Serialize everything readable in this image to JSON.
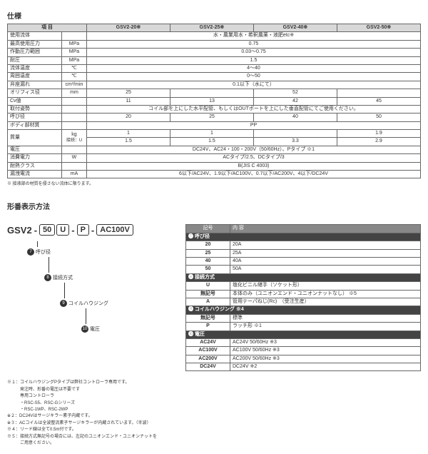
{
  "spec": {
    "title": "仕様",
    "headers": [
      "項 目",
      "",
      "GSV2-20※",
      "GSV2-25※",
      "GSV2-40※",
      "GSV2-50※"
    ],
    "rows": [
      {
        "label": "使用流体",
        "unit": "",
        "vals": [
          "水・農業用水・希釈農薬・液肥etc※"
        ],
        "span": 4
      },
      {
        "label": "最高使用圧力",
        "unit": "MPa",
        "vals": [
          "0.75"
        ],
        "span": 4
      },
      {
        "label": "作動圧力範囲",
        "unit": "MPa",
        "vals": [
          "0.03～0.75"
        ],
        "span": 4
      },
      {
        "label": "耐圧",
        "unit": "MPa",
        "vals": [
          "1.5"
        ],
        "span": 4
      },
      {
        "label": "流体温度",
        "unit": "℃",
        "vals": [
          "4～40"
        ],
        "span": 4
      },
      {
        "label": "周囲温度",
        "unit": "℃",
        "vals": [
          "0～50"
        ],
        "span": 4
      },
      {
        "label": "弁座漏れ",
        "unit": "cm³/min",
        "vals": [
          "0.1以下（水にて）"
        ],
        "span": 4
      },
      {
        "label": "オリフィス径",
        "unit": "mm",
        "vals": [
          "25",
          "",
          "52",
          ""
        ],
        "span": 0
      },
      {
        "label": "Cv値",
        "unit": "",
        "vals": [
          "11",
          "13",
          "42",
          "45"
        ],
        "span": 0
      },
      {
        "label": "取付姿勢",
        "unit": "",
        "vals": [
          "コイル部を上にした水平配管、もしくはOUTポートを上にした垂直配管にてご使用ください。"
        ],
        "span": 4
      },
      {
        "label": "呼び径",
        "unit": "",
        "vals": [
          "20",
          "25",
          "40",
          "50"
        ],
        "span": 0
      },
      {
        "label": "ボディ部材質",
        "unit": "",
        "vals": [
          "PP"
        ],
        "span": 4
      }
    ],
    "mass": {
      "label": "質量",
      "unit": "kg",
      "sub1": "接続：U",
      "vals1": [
        "1",
        "1",
        "",
        "1.9"
      ],
      "sub2": "接続：A",
      "vals2": [
        "1.5",
        "1.5",
        "3.3",
        "2.9"
      ]
    },
    "rows2": [
      {
        "label": "電圧",
        "unit": "",
        "vals": [
          "DC24V、AC24・100・200V（50/60Hz）、Pタイプ ※1"
        ],
        "span": 4
      },
      {
        "label": "消費電力",
        "unit": "W",
        "vals": [
          "ACタイプ/2.5、DCタイプ/3"
        ],
        "span": 4
      },
      {
        "label": "耐熱クラス",
        "unit": "",
        "vals": [
          "B(JIS C 4003)"
        ],
        "span": 4
      },
      {
        "label": "漏洩電流",
        "unit": "mA",
        "vals": [
          "6以下/AC24V、1.9以下/AC100V、0.7以下/AC200V、4以下/DC24V"
        ],
        "span": 4
      }
    ],
    "footnote": "※ 接液部の材質を侵さない流体に限ります。"
  },
  "model": {
    "title": "形番表示方法",
    "prefix": "GSV2",
    "parts": [
      "50",
      "U",
      "P",
      "AC100V"
    ],
    "labels": {
      "a": "呼び径",
      "b": "接続方式",
      "c": "コイルハウジング",
      "d": "電圧"
    }
  },
  "options": {
    "col_head": [
      "記号",
      "内 容"
    ],
    "groups": [
      {
        "title": "❼ 呼び径",
        "rows": [
          [
            "20",
            "20A"
          ],
          [
            "25",
            "25A"
          ],
          [
            "40",
            "40A"
          ],
          [
            "50",
            "50A"
          ]
        ]
      },
      {
        "title": "❽ 接続方式",
        "rows": [
          [
            "U",
            "塩化ビニル継手（ソケット形）"
          ],
          [
            "無記号",
            "本体のみ（ユニオンエンド・ユニオンナットなし） ※5"
          ],
          [
            "A",
            "管用テーパねじ(Rc)　（受注生産）"
          ]
        ]
      },
      {
        "title": "❾ コイルハウジング ※4",
        "rows": [
          [
            "無記号",
            "標準"
          ],
          [
            "P",
            "ラッチ形 ※1"
          ]
        ]
      },
      {
        "title": "❿ 電圧",
        "rows": [
          [
            "AC24V",
            "AC24V 50/60Hz ※3"
          ],
          [
            "AC100V",
            "AC100V 50/60Hz ※3"
          ],
          [
            "AC200V",
            "AC200V 50/60Hz ※3"
          ],
          [
            "DC24V",
            "DC24V ※2"
          ]
        ]
      }
    ]
  },
  "notes": {
    "lines": [
      "※１：コイルハウジングPタイプは弊社コントローラ専用です。",
      "　　　発注時、形番の電圧は不要です",
      "　　　専用コントローラ",
      "　　　・RSC-S5、RSC-Gシリーズ",
      "　　　・RSC-1WP、RSC-2WP",
      "※２：DC24Vはサージキラー素子内蔵です。",
      "※３：ACコイルは全波整流素子サージキラーが内蔵されています。（半波）",
      "※４：リード線は全て0.5m付です。",
      "※５：接続方式無記号の場合には、左記のユニオンエンド・ユニオンナットを",
      "　　　ご用意ください。"
    ]
  }
}
